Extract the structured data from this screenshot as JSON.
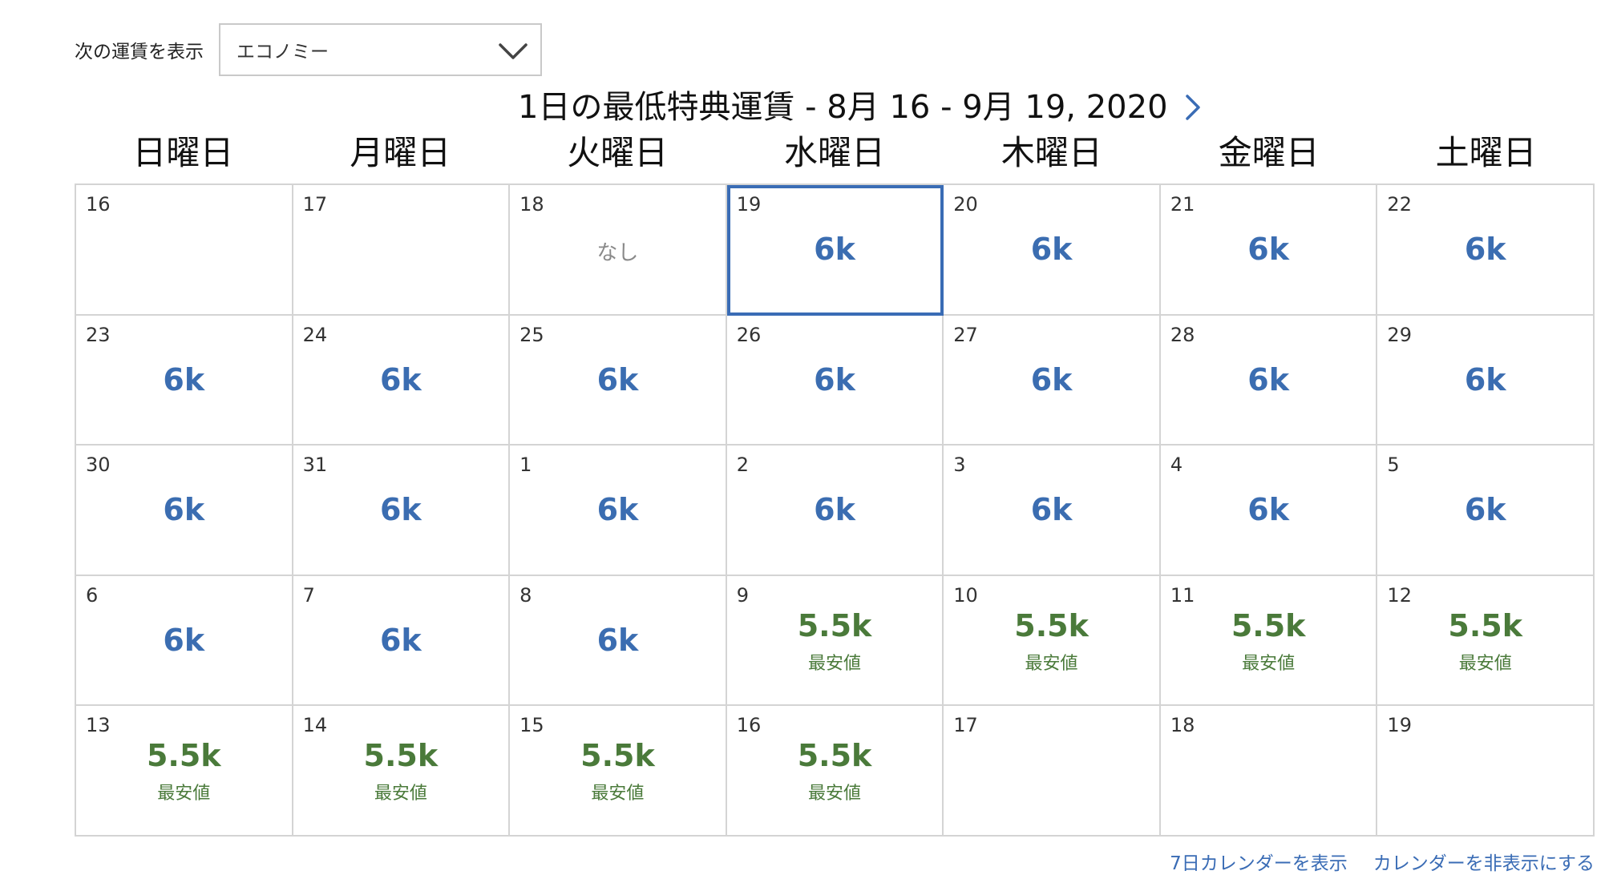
{
  "fare_filter": {
    "label": "次の運賃を表示",
    "selected": "エコノミー",
    "chevron_icon": "chevron-down-icon"
  },
  "calendar": {
    "title": "1日の最低特典運賃 - 8月 16 - 9月 19, 2020",
    "next_icon": "chevron-right-icon",
    "weekdays": [
      "日曜日",
      "月曜日",
      "火曜日",
      "水曜日",
      "木曜日",
      "金曜日",
      "土曜日"
    ],
    "cells": [
      {
        "day": "16",
        "price": "",
        "note": ""
      },
      {
        "day": "17",
        "price": "",
        "note": ""
      },
      {
        "day": "18",
        "price": "なし",
        "note": "",
        "unavailable": true
      },
      {
        "day": "19",
        "price": "6k",
        "note": "",
        "selected": true
      },
      {
        "day": "20",
        "price": "6k",
        "note": ""
      },
      {
        "day": "21",
        "price": "6k",
        "note": ""
      },
      {
        "day": "22",
        "price": "6k",
        "note": ""
      },
      {
        "day": "23",
        "price": "6k",
        "note": ""
      },
      {
        "day": "24",
        "price": "6k",
        "note": ""
      },
      {
        "day": "25",
        "price": "6k",
        "note": ""
      },
      {
        "day": "26",
        "price": "6k",
        "note": ""
      },
      {
        "day": "27",
        "price": "6k",
        "note": ""
      },
      {
        "day": "28",
        "price": "6k",
        "note": ""
      },
      {
        "day": "29",
        "price": "6k",
        "note": ""
      },
      {
        "day": "30",
        "price": "6k",
        "note": ""
      },
      {
        "day": "31",
        "price": "6k",
        "note": ""
      },
      {
        "day": "1",
        "price": "6k",
        "note": ""
      },
      {
        "day": "2",
        "price": "6k",
        "note": ""
      },
      {
        "day": "3",
        "price": "6k",
        "note": ""
      },
      {
        "day": "4",
        "price": "6k",
        "note": ""
      },
      {
        "day": "5",
        "price": "6k",
        "note": ""
      },
      {
        "day": "6",
        "price": "6k",
        "note": ""
      },
      {
        "day": "7",
        "price": "6k",
        "note": ""
      },
      {
        "day": "8",
        "price": "6k",
        "note": ""
      },
      {
        "day": "9",
        "price": "5.5k",
        "note": "最安値",
        "best": true
      },
      {
        "day": "10",
        "price": "5.5k",
        "note": "最安値",
        "best": true
      },
      {
        "day": "11",
        "price": "5.5k",
        "note": "最安値",
        "best": true
      },
      {
        "day": "12",
        "price": "5.5k",
        "note": "最安値",
        "best": true
      },
      {
        "day": "13",
        "price": "5.5k",
        "note": "最安値",
        "best": true
      },
      {
        "day": "14",
        "price": "5.5k",
        "note": "最安値",
        "best": true
      },
      {
        "day": "15",
        "price": "5.5k",
        "note": "最安値",
        "best": true
      },
      {
        "day": "16",
        "price": "5.5k",
        "note": "最安値",
        "best": true
      },
      {
        "day": "17",
        "price": "",
        "note": ""
      },
      {
        "day": "18",
        "price": "",
        "note": ""
      },
      {
        "day": "19",
        "price": "",
        "note": ""
      }
    ]
  },
  "footer": {
    "show_7day": "7日カレンダーを表示",
    "hide_calendar": "カレンダーを非表示にする"
  },
  "colors": {
    "price_blue": "#3b6db1",
    "best_green": "#4a7a3a",
    "selected_border": "#3a6cb5",
    "link_blue": "#3a6cb5"
  }
}
